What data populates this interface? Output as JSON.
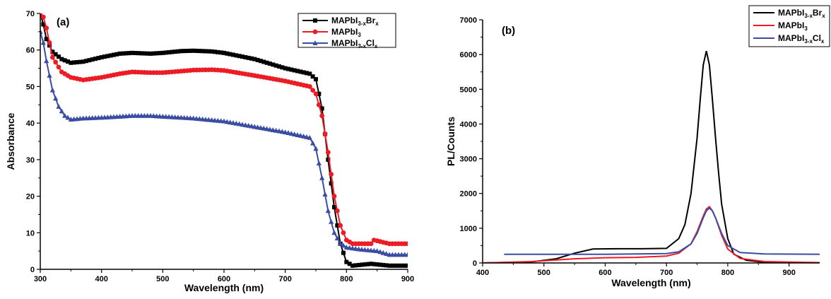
{
  "chart_data": [
    {
      "panel": "(a)",
      "type": "line",
      "xlabel": "Wavelength (nm)",
      "ylabel": "Absorbance",
      "xlim": [
        300,
        900
      ],
      "ylim": [
        0,
        70
      ],
      "xticks": [
        300,
        400,
        500,
        600,
        700,
        800,
        900
      ],
      "yticks": [
        0,
        10,
        20,
        30,
        40,
        50,
        60,
        70
      ],
      "legend_position": "top-right",
      "series": [
        {
          "name": "MAPbI3-xBrx",
          "name_parts": [
            "MAPbI",
            "3-x",
            "Br",
            "x"
          ],
          "color": "#000000",
          "marker": "square",
          "x": [
            300,
            305,
            310,
            320,
            335,
            350,
            370,
            400,
            430,
            450,
            480,
            500,
            530,
            550,
            580,
            600,
            650,
            700,
            740,
            750,
            760,
            770,
            780,
            790,
            800,
            810,
            840,
            870,
            900
          ],
          "y": [
            70,
            67,
            63,
            59.5,
            57.5,
            56.5,
            56.8,
            58,
            59,
            59.2,
            59,
            59.2,
            59.7,
            59.8,
            59.6,
            59.2,
            57.5,
            55,
            53.5,
            52,
            44,
            30,
            17,
            7,
            2,
            1,
            1.5,
            1,
            1
          ]
        },
        {
          "name": "MAPbI3",
          "name_parts": [
            "MAPbI",
            "3",
            "",
            ""
          ],
          "color": "#ed1c24",
          "marker": "circle",
          "x": [
            300,
            305,
            310,
            320,
            335,
            350,
            370,
            400,
            430,
            450,
            480,
            500,
            530,
            550,
            580,
            600,
            650,
            700,
            740,
            750,
            760,
            770,
            780,
            790,
            800,
            810,
            840,
            845,
            870,
            900
          ],
          "y": [
            70,
            69,
            66,
            58,
            54,
            52.5,
            51.8,
            52.5,
            53.5,
            54,
            53.8,
            53.8,
            54.2,
            54.5,
            54.6,
            54.4,
            53,
            51.5,
            50,
            48,
            42,
            32,
            20,
            12,
            8,
            7,
            7,
            8,
            7,
            7
          ]
        },
        {
          "name": "MAPbI3-xClx",
          "name_parts": [
            "MAPbI",
            "3-x",
            "Cl",
            "x"
          ],
          "color": "#3a4ca3",
          "marker": "triangle",
          "x": [
            300,
            305,
            310,
            320,
            330,
            340,
            350,
            370,
            400,
            430,
            450,
            480,
            500,
            550,
            600,
            650,
            700,
            740,
            750,
            760,
            770,
            780,
            790,
            800,
            820,
            850,
            870,
            900
          ],
          "y": [
            65,
            62,
            57,
            49,
            44.5,
            42,
            41,
            41.3,
            41.5,
            41.8,
            42,
            42,
            41.8,
            41.3,
            40.5,
            39,
            37.5,
            36,
            33,
            25,
            16,
            10,
            7,
            6,
            5.5,
            5,
            4,
            4
          ]
        }
      ]
    },
    {
      "panel": "(b)",
      "type": "line",
      "xlabel": "Wavelength (nm)",
      "ylabel": "PL/Counts",
      "xlim": [
        400,
        950
      ],
      "ylim": [
        0,
        7000
      ],
      "xticks": [
        400,
        500,
        600,
        700,
        800,
        900
      ],
      "yticks": [
        0,
        1000,
        2000,
        3000,
        4000,
        5000,
        6000,
        7000
      ],
      "legend_position": "top-right",
      "series": [
        {
          "name": "MAPbI3-xBrx",
          "name_parts": [
            "MAPbI",
            "3-x",
            "Br",
            "x"
          ],
          "color": "#000000",
          "x": [
            400,
            480,
            520,
            550,
            580,
            620,
            660,
            700,
            720,
            730,
            740,
            750,
            755,
            760,
            765,
            770,
            775,
            780,
            785,
            790,
            800,
            810,
            830,
            860,
            950
          ],
          "y": [
            0,
            30,
            120,
            280,
            400,
            410,
            410,
            420,
            700,
            1100,
            2000,
            3600,
            4700,
            5700,
            6100,
            5700,
            4700,
            3600,
            2600,
            1700,
            700,
            250,
            80,
            20,
            0
          ]
        },
        {
          "name": "MAPbI3",
          "name_parts": [
            "MAPbI",
            "3",
            "",
            ""
          ],
          "color": "#ed1c24",
          "x": [
            400,
            480,
            550,
            600,
            650,
            700,
            720,
            740,
            750,
            760,
            765,
            770,
            775,
            780,
            790,
            800,
            820,
            860,
            950
          ],
          "y": [
            0,
            40,
            120,
            150,
            160,
            200,
            280,
            550,
            900,
            1350,
            1550,
            1620,
            1500,
            1300,
            800,
            400,
            130,
            40,
            10
          ]
        },
        {
          "name": "MAPbI3-xClx",
          "name_parts": [
            "MAPbI",
            "3-x",
            "Cl",
            "x"
          ],
          "color": "#3a4ca3",
          "x": [
            435,
            600,
            700,
            720,
            740,
            750,
            760,
            765,
            770,
            775,
            780,
            790,
            800,
            820,
            860,
            950
          ],
          "y": [
            250,
            250,
            270,
            320,
            550,
            850,
            1300,
            1500,
            1580,
            1500,
            1300,
            850,
            500,
            300,
            260,
            250
          ]
        }
      ]
    }
  ]
}
